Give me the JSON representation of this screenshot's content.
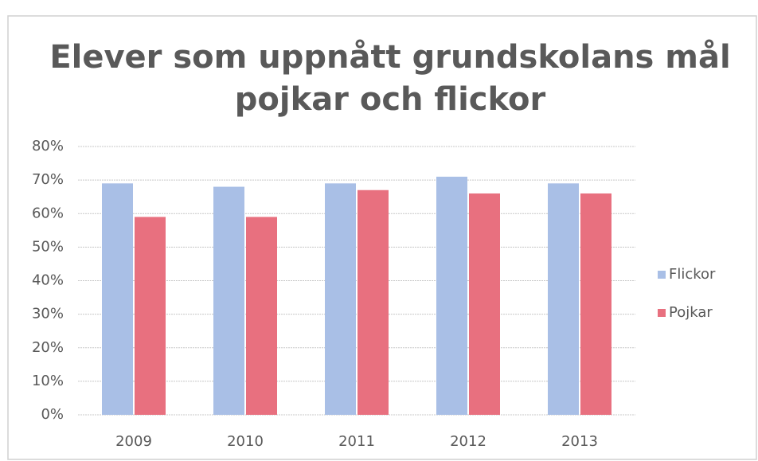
{
  "chart_data": {
    "type": "bar",
    "title": [
      "Elever som uppnått grundskolans mål",
      "pojkar och flickor"
    ],
    "categories": [
      "2009",
      "2010",
      "2011",
      "2012",
      "2013"
    ],
    "series": [
      {
        "name": "Flickor",
        "color": "#a9bfe6",
        "values": [
          69,
          68,
          69,
          71,
          69
        ]
      },
      {
        "name": "Pojkar",
        "color": "#e8707f",
        "values": [
          59,
          59,
          67,
          66,
          66
        ]
      }
    ],
    "ylim": [
      0,
      80
    ],
    "yticks": [
      {
        "value": 0,
        "label": "0%"
      },
      {
        "value": 10,
        "label": "10%"
      },
      {
        "value": 20,
        "label": "20%"
      },
      {
        "value": 30,
        "label": "30%"
      },
      {
        "value": 40,
        "label": "40%"
      },
      {
        "value": 50,
        "label": "50%"
      },
      {
        "value": 60,
        "label": "60%"
      },
      {
        "value": 70,
        "label": "70%"
      },
      {
        "value": 80,
        "label": "80%"
      }
    ],
    "grid": true,
    "legend": "right"
  }
}
